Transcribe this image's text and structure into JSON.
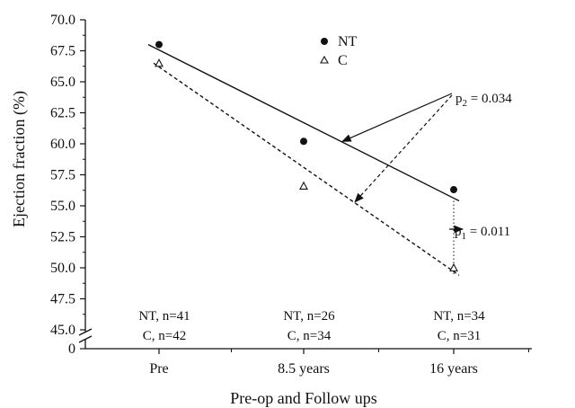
{
  "chart_data": {
    "type": "scatter",
    "xlabel": "Pre-op and Follow ups",
    "ylabel": "Ejection fraction (%)",
    "categories": [
      "Pre",
      "8.5 years",
      "16 years"
    ],
    "yticks": [
      "45.0",
      "47.5",
      "50.0",
      "52.5",
      "55.0",
      "57.5",
      "60.0",
      "62.5",
      "65.0",
      "67.5",
      "70.0"
    ],
    "y_zero_tick": "0",
    "ylim": [
      45.0,
      70.0
    ],
    "axis_break": true,
    "grid": false,
    "legend_position": "top-center",
    "series": [
      {
        "name": "NT",
        "marker": "filled-circle",
        "values": [
          68.0,
          60.2,
          56.3
        ],
        "trend": {
          "start": 68.0,
          "end": 55.4,
          "style": "solid"
        }
      },
      {
        "name": "C",
        "marker": "open-triangle",
        "values": [
          66.5,
          56.6,
          50.0
        ],
        "trend": {
          "start": 66.5,
          "end": 49.4,
          "style": "dashed"
        }
      }
    ],
    "annotations": {
      "p2": {
        "label": "p",
        "sub": "2",
        "value": " = 0.034"
      },
      "p1": {
        "label": "p",
        "sub": "1",
        "value": " = 0.011"
      }
    },
    "sample_sizes": [
      {
        "nt": "NT, n=41",
        "c": "C, n=42"
      },
      {
        "nt": "NT, n=26",
        "c": "C, n=34"
      },
      {
        "nt": "NT, n=34",
        "c": "C, n=31"
      }
    ]
  }
}
